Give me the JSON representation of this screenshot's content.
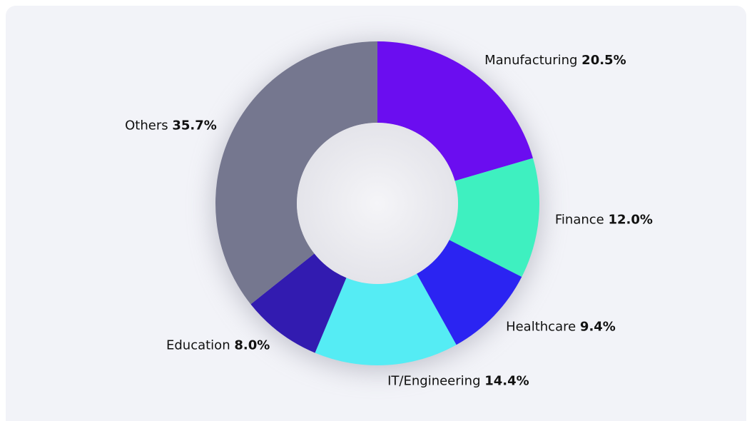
{
  "chart_data": {
    "type": "donut",
    "categories": [
      "Manufacturing",
      "Finance",
      "Healthcare",
      "IT/Engineering",
      "Education",
      "Others"
    ],
    "values": [
      20.5,
      12.0,
      9.4,
      14.4,
      8.0,
      35.7
    ],
    "value_labels": [
      "20.5%",
      "12.0%",
      "9.4%",
      "14.4%",
      "8.0%",
      "35.7%"
    ],
    "colors": [
      "#6b0df0",
      "#3ef0c0",
      "#2b24f2",
      "#55ecf4",
      "#321bb0",
      "#75778f"
    ]
  }
}
